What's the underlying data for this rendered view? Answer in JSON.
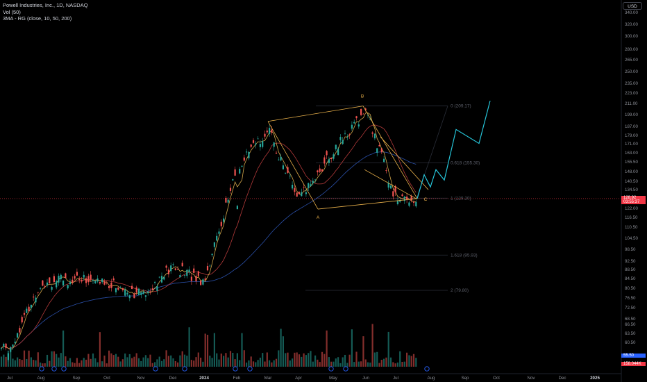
{
  "legend": {
    "title": "Powell Industries, Inc., 1D, NASDAQ",
    "volume": "Vol (50)",
    "ma": "3MA - RG (close, 10, 50, 200)"
  },
  "currency_button": "USD",
  "price_tags": [
    {
      "text": "128.92",
      "color": "#f23645"
    },
    {
      "text": "03:55:37",
      "color": "#f23645"
    },
    {
      "text": "55.50",
      "color": "#2962ff"
    },
    {
      "text": "158.044K",
      "color": "#f23645"
    }
  ],
  "colors": {
    "up": "#26a69a",
    "down": "#ef5350",
    "ma10": "#d4a84b",
    "ma50": "#b33a3a",
    "ma200": "#2a4fa8",
    "wave": "#26c6da",
    "pattern": "#e8b04a",
    "fib_text": "#5d606b",
    "priceline": "#f23645"
  },
  "chart_data": {
    "type": "candlestick",
    "title": "Powell Industries, Inc., 1D, NASDAQ",
    "y_scale": "log",
    "ylim": [
      52,
      350
    ],
    "y_ticks": [
      "340.00",
      "320.00",
      "300.00",
      "280.00",
      "265.00",
      "250.00",
      "235.00",
      "223.00",
      "211.00",
      "199.00",
      "187.00",
      "179.00",
      "171.00",
      "163.00",
      "155.50",
      "148.00",
      "140.50",
      "134.50",
      "122.00",
      "116.50",
      "110.50",
      "104.50",
      "98.50",
      "92.50",
      "88.50",
      "84.50",
      "80.50",
      "76.50",
      "72.50",
      "68.50",
      "66.50",
      "63.50",
      "60.50"
    ],
    "x_ticks": [
      "Jul",
      "Aug",
      "Sep",
      "Oct",
      "Nov",
      "Dec",
      "2024",
      "Feb",
      "Mar",
      "Apr",
      "May",
      "Jun",
      "Jul",
      "Aug",
      "Sep",
      "Oct",
      "Nov",
      "Dec",
      "2025"
    ],
    "last_price": 128.92,
    "close_series": [
      {
        "month": "Jul",
        "close": 59
      },
      {
        "month": "Aug",
        "close": 83
      },
      {
        "month": "Sep",
        "close": 85
      },
      {
        "month": "Oct",
        "close": 83
      },
      {
        "month": "Nov",
        "close": 78
      },
      {
        "month": "Dec",
        "close": 90
      },
      {
        "month": "2024",
        "close": 84
      },
      {
        "month": "Feb",
        "close": 150
      },
      {
        "month": "Mar",
        "close": 185
      },
      {
        "month": "Apr",
        "close": 128
      },
      {
        "month": "May",
        "close": 165
      },
      {
        "month": "Jun",
        "close": 205
      },
      {
        "month": "Jul",
        "close": 128.92
      }
    ],
    "fib_levels": [
      {
        "label": "0 (209.17)",
        "value": 209.17
      },
      {
        "label": "0.618 (155.30)",
        "value": 155.3
      },
      {
        "label": "1 (129.20)",
        "value": 129.2
      },
      {
        "label": "1.618 (95.93)",
        "value": 95.93
      },
      {
        "label": "2 (79.80)",
        "value": 79.8
      }
    ],
    "wave_labels": [
      {
        "label": "A",
        "value": 122
      },
      {
        "label": "B",
        "value": 209.17
      },
      {
        "label": "C",
        "value": 128.9
      }
    ],
    "projection": [
      128.9,
      146,
      137,
      150,
      142,
      185,
      172,
      215
    ],
    "moving_averages": [
      "MA 10",
      "MA 50",
      "MA 200"
    ],
    "series": [
      {
        "name": "Vol (50)"
      }
    ]
  }
}
